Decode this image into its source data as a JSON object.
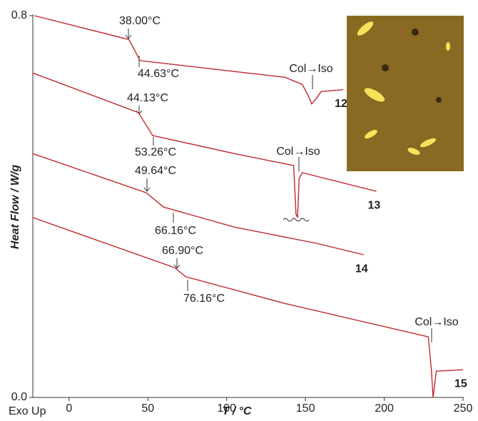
{
  "chart_data": {
    "type": "line",
    "y_label": "Heat Flow / W/g",
    "x_label": "T / °C",
    "corner_note": "Exo Up",
    "xlim": [
      -23,
      250
    ],
    "xticks": [
      0,
      50,
      100,
      150,
      200,
      250
    ],
    "ylim": [
      0,
      0.8
    ],
    "yticks": [
      {
        "value": 0,
        "label": "0.0"
      },
      0.8
    ],
    "annotations": [
      "38.00°C",
      "44.63°C",
      "44.13°C",
      "53.26°C",
      "49.64°C",
      "66.16°C",
      "66.90°C",
      "76.16°C",
      "Col→Iso",
      "Col→Iso",
      "Col→Iso"
    ],
    "series": [
      {
        "name": "12",
        "color": "#c0282d",
        "x": [
          -22,
          38,
          42,
          45,
          92,
          137,
          148,
          152,
          154,
          157,
          160,
          174
        ],
        "values": [
          0.8,
          0.75,
          0.725,
          0.706,
          0.688,
          0.671,
          0.656,
          0.631,
          0.615,
          0.627,
          0.641,
          0.645
        ]
      },
      {
        "name": "13",
        "color": "#c0282d",
        "x": [
          -23,
          44,
          53,
          105,
          142.5,
          144,
          145,
          146,
          148,
          195
        ],
        "values": [
          0.68,
          0.597,
          0.549,
          0.511,
          0.486,
          0.384,
          0.377,
          0.459,
          0.471,
          0.432
        ]
      },
      {
        "name": "14",
        "color": "#c0282d",
        "x": [
          -23,
          49,
          60,
          105,
          157,
          187
        ],
        "values": [
          0.511,
          0.429,
          0.399,
          0.357,
          0.323,
          0.299
        ]
      },
      {
        "name": "15",
        "color": "#c0282d",
        "x": [
          -23,
          67,
          74,
          137,
          228,
          230,
          231,
          233,
          250
        ],
        "values": [
          0.377,
          0.272,
          0.253,
          0.197,
          0.127,
          0.055,
          0,
          0.055,
          0.058
        ]
      }
    ]
  }
}
